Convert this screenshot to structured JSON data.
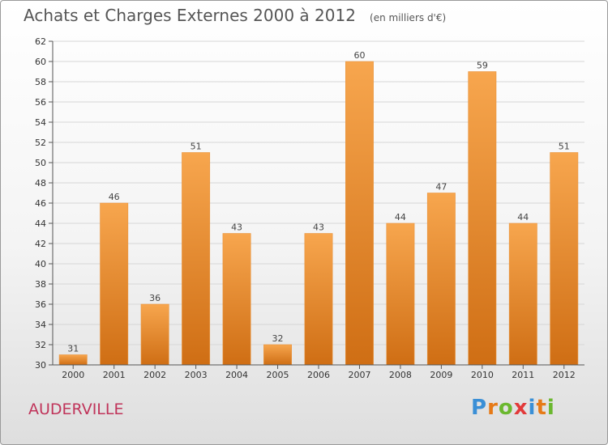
{
  "header": {
    "title": "Achats et Charges Externes 2000 à 2012",
    "unit": "(en milliers d'€)"
  },
  "commune": "AUDERVILLE",
  "logo": {
    "letters": [
      "P",
      "r",
      "o",
      "x",
      "i",
      "t",
      "i"
    ],
    "colors": [
      "#3a8fd6",
      "#e67a17",
      "#6bb82f",
      "#e23a3a",
      "#3a8fd6",
      "#e67a17",
      "#6bb82f"
    ]
  },
  "chart_data": {
    "type": "bar",
    "title": "Achats et Charges Externes 2000 à 2012",
    "unit": "(en milliers d'€)",
    "categories": [
      "2000",
      "2001",
      "2002",
      "2003",
      "2004",
      "2005",
      "2006",
      "2007",
      "2008",
      "2009",
      "2010",
      "2011",
      "2012"
    ],
    "values": [
      31,
      46,
      36,
      51,
      43,
      32,
      43,
      60,
      44,
      47,
      59,
      44,
      51
    ],
    "ylim": [
      30,
      62
    ],
    "yticks": [
      30,
      32,
      34,
      36,
      38,
      40,
      42,
      44,
      46,
      48,
      50,
      52,
      54,
      56,
      58,
      60,
      62
    ],
    "grid": true,
    "bar_color_top": "#f7a64e",
    "bar_color_bottom": "#cf6e14",
    "data_labels": true
  }
}
